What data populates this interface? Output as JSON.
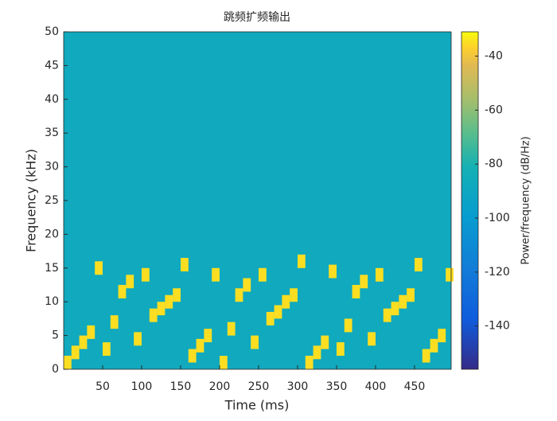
{
  "chart_data": {
    "type": "spectrogram",
    "title": "跳频扩频输出",
    "x_label": "Time (ms)",
    "y_label": "Frequency (kHz)",
    "colorbar_label": "Power/frequency (dB/Hz)",
    "x": [
      5,
      15,
      25,
      35,
      45,
      55,
      65,
      75,
      85,
      95,
      105,
      115,
      125,
      135,
      145,
      155,
      165,
      175,
      185,
      195,
      205,
      215,
      225,
      235,
      245,
      255,
      265,
      275,
      285,
      295,
      305,
      315,
      325,
      335,
      345,
      355,
      365,
      375,
      385,
      395,
      405,
      415,
      425,
      435,
      445,
      455,
      465,
      475,
      485,
      495
    ],
    "series": [
      {
        "name": "hop",
        "values": [
          1,
          2.5,
          4,
          5.5,
          15,
          3,
          7,
          11.5,
          13,
          4.5,
          14,
          8,
          9,
          10,
          11,
          15.5,
          2,
          3.5,
          5,
          14,
          1,
          6,
          11,
          12.5,
          4,
          14,
          7.5,
          8.5,
          10,
          11,
          16,
          1,
          2.5,
          4,
          14.5,
          3,
          6.5,
          11.5,
          13,
          4.5,
          14,
          8,
          9,
          10,
          11,
          15.5,
          2,
          3.5,
          5,
          14
        ]
      }
    ],
    "hop_level": -35,
    "background_level": -88,
    "xlim": [
      0,
      497
    ],
    "xticks": [
      50,
      100,
      150,
      200,
      250,
      300,
      350,
      400,
      450
    ],
    "ylim": [
      0,
      50
    ],
    "yticks": [
      0,
      5,
      10,
      15,
      20,
      25,
      30,
      35,
      40,
      45,
      50
    ],
    "clim": [
      -156,
      -31
    ],
    "cticks": [
      -40,
      -60,
      -80,
      -100,
      -120,
      -140
    ]
  }
}
